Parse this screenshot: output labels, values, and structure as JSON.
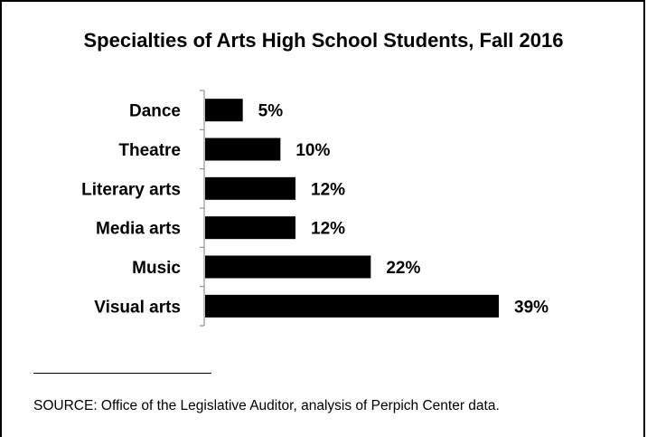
{
  "chart_data": {
    "type": "bar",
    "orientation": "horizontal",
    "title": "Specialties of Arts High School Students, Fall 2016",
    "categories": [
      "Dance",
      "Theatre",
      "Literary arts",
      "Media arts",
      "Music",
      "Visual arts"
    ],
    "values": [
      5,
      10,
      12,
      12,
      22,
      39
    ],
    "value_labels": [
      "5%",
      "10%",
      "12%",
      "12%",
      "22%",
      "39%"
    ],
    "bar_color": "#000000",
    "grid": false,
    "legend": "none"
  },
  "footer": {
    "source": "SOURCE:  Office of the Legislative Auditor, analysis of Perpich Center data."
  }
}
